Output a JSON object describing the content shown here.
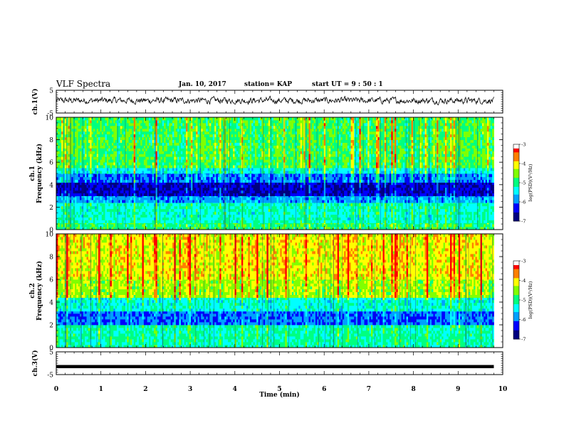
{
  "header": {
    "title": "VLF Spectra",
    "date": "Jan. 10, 2017",
    "station": "station= KAP",
    "start": "start  UT =  9 : 50 : 1"
  },
  "colors": {
    "colormap": [
      "#000080",
      "#0000ff",
      "#00a0ff",
      "#00ffff",
      "#00ff80",
      "#80ff00",
      "#ffff00",
      "#ff8000",
      "#ff0000",
      "#ffffff"
    ],
    "trace": "#000000"
  },
  "chart_data": [
    {
      "type": "line",
      "id": "ch1-waveform",
      "ylabel": "ch.1(V)",
      "ylim": [
        -5,
        5
      ],
      "yticks": [
        "5",
        "-5"
      ],
      "xlim": [
        0,
        10
      ],
      "x_end": 9.8,
      "amplitude_range": [
        -1.5,
        2.5
      ],
      "description_trace": "noisy waveform"
    },
    {
      "type": "heatmap",
      "id": "ch1-spectrogram",
      "ylabel_lines": [
        "ch.1",
        "Frequency (kHz)"
      ],
      "ylim": [
        0,
        10
      ],
      "yticks": [
        "0",
        "2",
        "4",
        "6",
        "8",
        "10"
      ],
      "xlim": [
        0,
        10
      ],
      "x_end": 9.8,
      "colorbar": {
        "label": "log(PSD)(V²/Hz)",
        "range": [
          -7,
          -3
        ],
        "ticks": [
          "-3",
          "-4",
          "-5",
          "-6",
          "-7"
        ]
      },
      "bands_kHz": [
        {
          "from": 0,
          "to": 0.6,
          "level": -5.0
        },
        {
          "from": 0.6,
          "to": 2.4,
          "level": -5.3
        },
        {
          "from": 2.4,
          "to": 3.0,
          "level": -5.9
        },
        {
          "from": 3.0,
          "to": 4.2,
          "level": -6.6
        },
        {
          "from": 4.2,
          "to": 5.0,
          "level": -6.1
        },
        {
          "from": 5.0,
          "to": 5.5,
          "level": -5.5
        },
        {
          "from": 5.5,
          "to": 10,
          "level": -4.9
        }
      ]
    },
    {
      "type": "heatmap",
      "id": "ch2-spectrogram",
      "ylabel_lines": [
        "ch.2",
        "Frequency (kHz)"
      ],
      "ylim": [
        0,
        10
      ],
      "yticks": [
        "0",
        "2",
        "4",
        "6",
        "8",
        "10"
      ],
      "xlim": [
        0,
        10
      ],
      "x_end": 9.8,
      "colorbar": {
        "label": "log(PSD)(V²/Hz)",
        "range": [
          -7,
          -3
        ],
        "ticks": [
          "-3",
          "-4",
          "-5",
          "-6",
          "-7"
        ]
      },
      "bands_kHz": [
        {
          "from": 0,
          "to": 2.0,
          "level": -5.2
        },
        {
          "from": 2.0,
          "to": 3.2,
          "level": -6.1
        },
        {
          "from": 3.2,
          "to": 4.4,
          "level": -5.4
        },
        {
          "from": 4.4,
          "to": 6.0,
          "level": -4.5
        },
        {
          "from": 6.0,
          "to": 10,
          "level": -4.2
        }
      ]
    },
    {
      "type": "line",
      "id": "ch3-waveform",
      "ylabel": "ch.3(V)",
      "ylim": [
        -5,
        5
      ],
      "yticks": [
        "5",
        "-5"
      ],
      "xlim": [
        0,
        10
      ],
      "x_end": 9.8,
      "constant_value": -1.5
    }
  ],
  "xaxis": {
    "label": "Time  (min)",
    "ticks": [
      "0",
      "1",
      "2",
      "3",
      "4",
      "5",
      "6",
      "7",
      "8",
      "9",
      "10"
    ]
  }
}
